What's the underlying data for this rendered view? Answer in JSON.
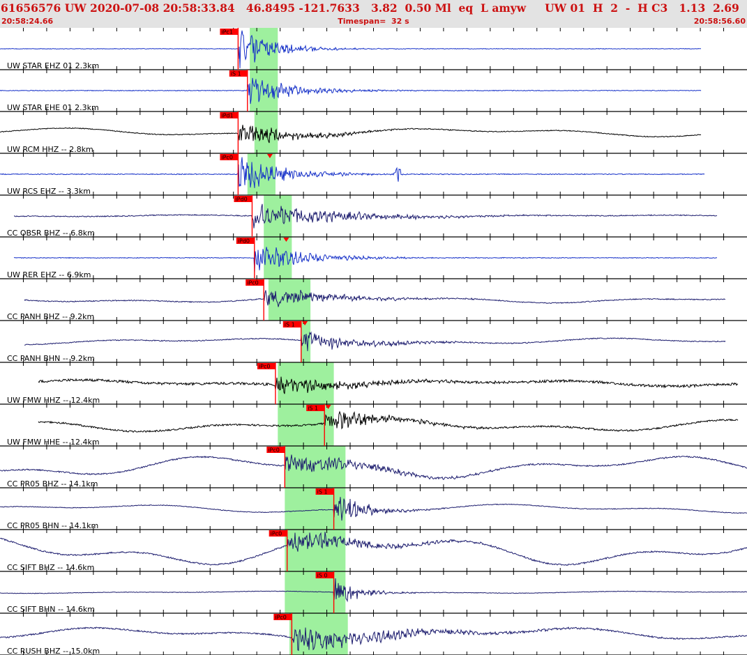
{
  "header": {
    "event_id": "61656576",
    "network": "UW",
    "origin_datetime": "2020-07-08 20:58:33.84",
    "latitude": "46.8495",
    "longitude": "-121.7633",
    "depth": "3.82",
    "magnitude": "0.50",
    "magnitude_type": "Ml",
    "event_type": "eq",
    "location_flag": "L",
    "analyst": "amyw",
    "source": "UW",
    "version": "01",
    "quality_flag": "H",
    "count": "2",
    "dash": "-",
    "status": "H C3",
    "value_a": "1.13",
    "value_b": "2.69",
    "start_time": "20:58:24.66",
    "timespan_label": "Timespan=  32 s",
    "end_time": "20:58:56.60"
  },
  "colors": {
    "header_bg": "#e3e3e3",
    "header_text": "#cc1111",
    "pick_red": "#ff0000",
    "window_green": "#9ef09e",
    "trace_blue": "#1530c8",
    "trace_navy": "#1c1c6e",
    "trace_black": "#000000"
  },
  "timeline": {
    "start_seconds": 0,
    "timespan_seconds": 32
  },
  "traces": [
    {
      "label": "UW STAR EHZ 01 2.3km",
      "color": "#1530c8",
      "pick": "iPc1",
      "pick_t": 10.2,
      "green_t": [
        10.7,
        11.9
      ],
      "s_marker": false
    },
    {
      "label": "UW STAR EHE 01 2.3km",
      "color": "#1530c8",
      "pick": "iS 1",
      "pick_t": 10.6,
      "green_t": [
        10.7,
        11.9
      ],
      "s_marker": false
    },
    {
      "label": "UW RCM HHZ -- 2.8km",
      "color": "#000000",
      "pick": "iPd1",
      "pick_t": 10.2,
      "green_t": [
        10.9,
        11.9
      ],
      "s_marker": false
    },
    {
      "label": "UW RCS EHZ -- 3.3km",
      "color": "#1530c8",
      "pick": "iPc0",
      "pick_t": 10.2,
      "green_t": [
        10.6,
        11.8
      ],
      "s_marker": true
    },
    {
      "label": "CC OBSR BHZ -- 6.8km",
      "color": "#1c1c6e",
      "pick": "iPd0",
      "pick_t": 10.8,
      "green_t": [
        11.3,
        12.5
      ],
      "s_marker": false
    },
    {
      "label": "UW RER EHZ -- 6.9km",
      "color": "#1530c8",
      "pick": "iPd0",
      "pick_t": 10.9,
      "green_t": [
        11.3,
        12.5
      ],
      "s_marker": true
    },
    {
      "label": "CC PANH BHZ -- 9.2km",
      "color": "#1c1c6e",
      "pick": "iPc0",
      "pick_t": 11.3,
      "green_t": [
        11.5,
        13.3
      ],
      "s_marker": false
    },
    {
      "label": "CC PANH BHN -- 9.2km",
      "color": "#1c1c6e",
      "pick": "iS 1",
      "pick_t": 12.9,
      "green_t": [
        12.9,
        13.3
      ],
      "s_marker": true
    },
    {
      "label": "UW FMW HHZ -- 12.4km",
      "color": "#000000",
      "pick": "iPc0",
      "pick_t": 11.8,
      "green_t": [
        11.9,
        14.3
      ],
      "s_marker": false
    },
    {
      "label": "UW FMW HHE -- 12.4km",
      "color": "#000000",
      "pick": "iS 1",
      "pick_t": 13.9,
      "green_t": [
        11.9,
        14.3
      ],
      "s_marker": true
    },
    {
      "label": "CC PR05 BHZ -- 14.1km",
      "color": "#1c1c6e",
      "pick": "iPc0",
      "pick_t": 12.2,
      "green_t": [
        12.2,
        14.8
      ],
      "s_marker": false
    },
    {
      "label": "CC PR05 BHN -- 14.1km",
      "color": "#1c1c6e",
      "pick": "iS 1",
      "pick_t": 14.3,
      "green_t": [
        12.2,
        14.8
      ],
      "s_marker": false
    },
    {
      "label": "CC SIFT BHZ -- 14.6km",
      "color": "#1c1c6e",
      "pick": "iPc0",
      "pick_t": 12.3,
      "green_t": [
        12.2,
        14.8
      ],
      "s_marker": false
    },
    {
      "label": "CC SIFT BHN -- 14.6km",
      "color": "#1c1c6e",
      "pick": "iS 0",
      "pick_t": 14.3,
      "green_t": [
        12.2,
        14.8
      ],
      "s_marker": false
    },
    {
      "label": "CC RUSH BHZ -- 15.0km",
      "color": "#1c1c6e",
      "pick": "iPc0",
      "pick_t": 12.5,
      "green_t": [
        12.4,
        14.9
      ],
      "s_marker": false
    }
  ]
}
